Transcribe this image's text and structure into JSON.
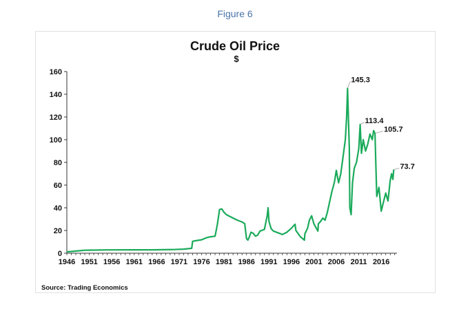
{
  "figure_caption": "Figure 6",
  "source": "Source: Trading Economics",
  "chart_data": {
    "type": "line",
    "title": "Crude Oil Price",
    "subtitle": "$",
    "xlabel": "",
    "ylabel": "",
    "xlim": [
      1946,
      2019.5
    ],
    "ylim": [
      0,
      160
    ],
    "x_ticks": [
      "1946",
      "1951",
      "1956",
      "1961",
      "1966",
      "1971",
      "1976",
      "1981",
      "1986",
      "1991",
      "1996",
      "2001",
      "2006",
      "2011",
      "2016"
    ],
    "y_ticks": [
      "0",
      "20",
      "40",
      "60",
      "80",
      "100",
      "120",
      "140",
      "160"
    ],
    "grid": false,
    "legend": "none",
    "series": [
      {
        "color": "#1aaa5a",
        "x": [
          1946,
          1947,
          1948,
          1950,
          1955,
          1960,
          1965,
          1970,
          1972,
          1973.8,
          1974,
          1975,
          1976,
          1977,
          1978,
          1979,
          1979.5,
          1980,
          1980.5,
          1981,
          1981.5,
          1982,
          1983,
          1984,
          1985,
          1985.6,
          1986,
          1986.3,
          1986.6,
          1987,
          1987.5,
          1988,
          1988.5,
          1989,
          1990,
          1990.6,
          1990.8,
          1991,
          1991.5,
          1992,
          1993,
          1994,
          1995,
          1996,
          1996.8,
          1997,
          1998,
          1998.9,
          1999,
          1999.6,
          2000,
          2000.5,
          2001,
          2001.9,
          2002,
          2002.5,
          2003,
          2003.5,
          2004,
          2004.5,
          2005,
          2005.6,
          2006,
          2006.5,
          2007,
          2007.5,
          2008,
          2008.3,
          2008.5,
          2008.9,
          2009,
          2009.3,
          2009.6,
          2010,
          2010.5,
          2011,
          2011.3,
          2011.6,
          2012,
          2012.5,
          2013,
          2013.5,
          2014,
          2014.3,
          2014.6,
          2015,
          2015.5,
          2016,
          2016.5,
          2017,
          2017.5,
          2018,
          2018.3,
          2018.6,
          2018.8
        ],
        "values": [
          1.2,
          1.5,
          1.9,
          2.6,
          2.9,
          3.0,
          3.0,
          3.3,
          3.6,
          4.3,
          10.5,
          11.2,
          11.8,
          13.5,
          14.5,
          15.0,
          25,
          38.5,
          39,
          36,
          34,
          33,
          31,
          29,
          27.5,
          26,
          13,
          11.5,
          14,
          18.5,
          17.5,
          15,
          16,
          19.5,
          21,
          33,
          40,
          28,
          21.5,
          19.5,
          18,
          16.5,
          18.5,
          22,
          25.5,
          20,
          14.5,
          11.5,
          17,
          22,
          29,
          33,
          26,
          19.5,
          26,
          28,
          31,
          29,
          36,
          45,
          54,
          63,
          73,
          62,
          70,
          85,
          100,
          120,
          145.3,
          92,
          40,
          34,
          62,
          75,
          80,
          92,
          113.4,
          88,
          100,
          90,
          96,
          105,
          100,
          108,
          105.7,
          50,
          58,
          37,
          45,
          53,
          46,
          64,
          70,
          65,
          73.7
        ]
      }
    ],
    "annotations": [
      {
        "text": "145.3",
        "x": 2008.5,
        "y": 145.3
      },
      {
        "text": "113.4",
        "x": 2011.3,
        "y": 113.4
      },
      {
        "text": "105.7",
        "x": 2014.6,
        "y": 105.7
      },
      {
        "text": "73.7",
        "x": 2018.8,
        "y": 73.7
      }
    ]
  }
}
